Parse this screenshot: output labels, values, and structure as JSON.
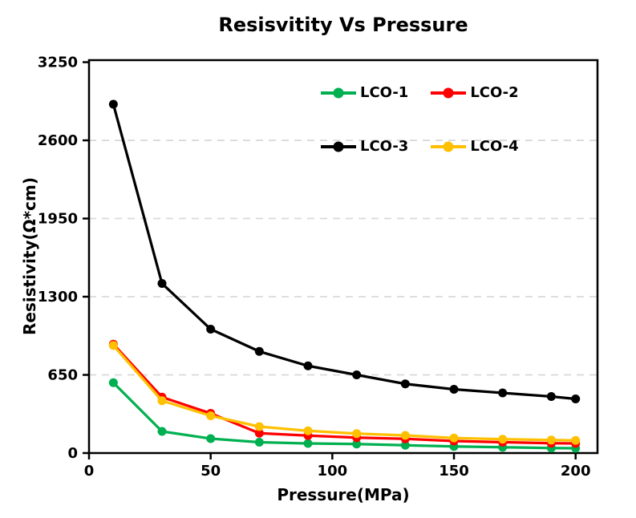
{
  "chart_data": {
    "type": "line",
    "title": "Resisvitity Vs Pressure",
    "xlabel": "Pressure(MPa)",
    "ylabel": "Resistivity(Ω*cm)",
    "x": [
      10,
      30,
      50,
      70,
      90,
      110,
      130,
      150,
      170,
      190,
      200
    ],
    "x_tick_labels": [
      "0",
      "50",
      "100",
      "150",
      "200"
    ],
    "x_tick_values": [
      0,
      50,
      100,
      150,
      200
    ],
    "y_tick_labels": [
      "0",
      "650",
      "1300",
      "1950",
      "2600",
      "3250"
    ],
    "y_tick_values": [
      0,
      650,
      1300,
      1950,
      2600,
      3250
    ],
    "gridline_values": [
      650,
      1300,
      1950,
      2600
    ],
    "xlim": [
      0,
      209
    ],
    "ylim": [
      0,
      3267
    ],
    "grid": "horizontal-dashed",
    "legend_position": "top-center-inside",
    "legend_rows": [
      [
        "LCO-1",
        "LCO-2"
      ],
      [
        "LCO-3",
        "LCO-4"
      ]
    ],
    "series": [
      {
        "name": "LCO-1",
        "color": "#00B050",
        "values": [
          585,
          180,
          120,
          90,
          80,
          75,
          65,
          55,
          48,
          42,
          40
        ]
      },
      {
        "name": "LCO-2",
        "color": "#FF0000",
        "values": [
          905,
          465,
          330,
          165,
          145,
          128,
          118,
          100,
          90,
          82,
          80
        ]
      },
      {
        "name": "LCO-3",
        "color": "#000000",
        "values": [
          2900,
          1410,
          1030,
          845,
          725,
          650,
          575,
          530,
          500,
          470,
          450
        ]
      },
      {
        "name": "LCO-4",
        "color": "#FFC000",
        "values": [
          895,
          435,
          310,
          220,
          185,
          162,
          147,
          125,
          115,
          108,
          105
        ]
      }
    ],
    "colors": {
      "axis": "#000000",
      "gridline": "#D9D9D9",
      "background": "#FFFFFF",
      "text": "#000000"
    }
  }
}
